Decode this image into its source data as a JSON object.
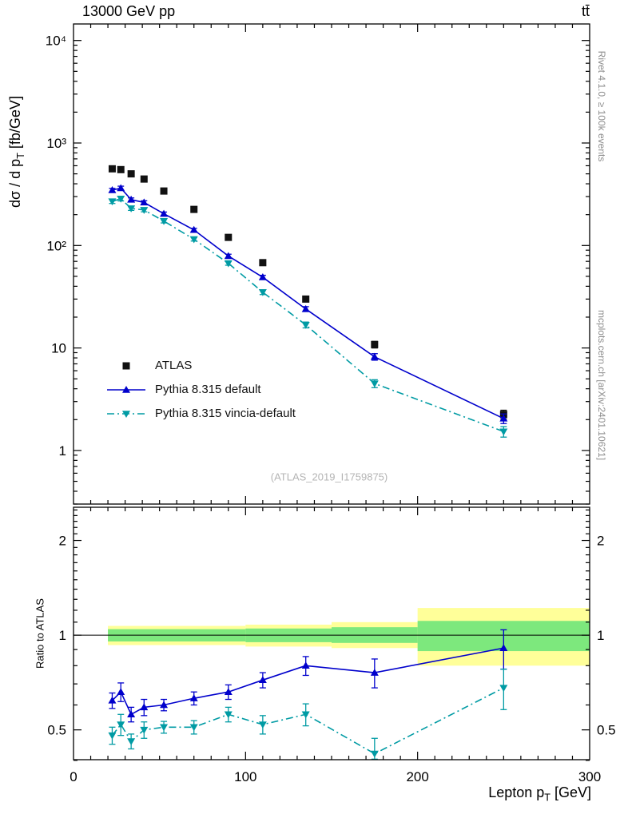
{
  "header": {
    "title_left": "13000 GeV pp",
    "title_right": "tt̄"
  },
  "side_notes": {
    "rivet": "Rivet 4.1.0, ≥ 100k events",
    "mcplots": "mcplots.cern.ch [arXiv:2401.10621]"
  },
  "watermark": "(ATLAS_2019_I1759875)",
  "labels": {
    "ylabel_top": {
      "pre": "dσ / d p",
      "sub": "T",
      "post": " [fb/GeV]"
    },
    "ylabel_ratio": "Ratio to ATLAS",
    "xlabel": {
      "pre": "Lepton p",
      "sub": "T",
      "post": " [GeV]"
    }
  },
  "legend": [
    {
      "label": "ATLAS",
      "marker": "square",
      "color": "#111111",
      "line": null
    },
    {
      "label": "Pythia 8.315 default",
      "marker": "triangle-up",
      "color": "#0000cc",
      "line": "solid"
    },
    {
      "label": "Pythia 8.315 vincia-default",
      "marker": "triangle-down",
      "color": "#009ba4",
      "line": "dashdot"
    }
  ],
  "chart_data": {
    "type": "line",
    "title": "13000 GeV pp",
    "process": "tt̄",
    "xlabel": "Lepton p_T [GeV]",
    "ylabel": "dσ / d p_T [fb/GeV]",
    "ratio_ylabel": "Ratio to ATLAS",
    "x_range": [
      0,
      300
    ],
    "top_y_range": [
      0.3,
      14500
    ],
    "ratio_y_range": [
      0.402,
      2.55
    ],
    "x_major_ticks": [
      0,
      100,
      200,
      300
    ],
    "x_major_tick_labels": [
      "0",
      "100",
      "200",
      "300"
    ],
    "x_minor_step": 10,
    "top_y_major_ticks": [
      1,
      10,
      100,
      1000,
      10000
    ],
    "top_y_major_tick_labels": [
      "1",
      "10",
      "10²",
      "10³",
      "10⁴"
    ],
    "ratio_y_major_ticks": [
      0.5,
      1,
      2
    ],
    "ratio_y_major_tick_labels": [
      "0.5",
      "1",
      "2"
    ],
    "ratio_y_minor_ticks": [
      0.4,
      0.6,
      0.7,
      0.8,
      0.9,
      1.1,
      1.2,
      1.3,
      1.4,
      1.5,
      1.6,
      1.7,
      1.8,
      1.9,
      2.1,
      2.2,
      2.3,
      2.4,
      2.5
    ],
    "x": [
      22.5,
      27.5,
      33.5,
      41,
      52.5,
      70,
      90,
      110,
      135,
      175,
      250
    ],
    "series": [
      {
        "name": "ATLAS",
        "marker": "square",
        "color": "#111111",
        "line": null,
        "values": [
          560,
          550,
          500,
          445,
          340,
          225,
          120,
          68,
          30,
          10.8,
          2.25
        ],
        "errors": [
          28,
          26,
          24,
          21,
          16,
          11,
          6,
          3.5,
          1.7,
          0.8,
          0.22
        ]
      },
      {
        "name": "Pythia 8.315 default",
        "marker": "triangle-up",
        "color": "#0000cc",
        "line": "solid",
        "values": [
          347,
          363,
          280,
          263,
          204,
          142,
          79,
          49,
          24,
          8.2,
          2.05
        ],
        "errors": [
          14,
          16,
          11,
          10,
          8,
          5,
          3.2,
          2.2,
          1.3,
          0.6,
          0.22
        ],
        "ratio": [
          0.62,
          0.66,
          0.56,
          0.59,
          0.6,
          0.63,
          0.66,
          0.72,
          0.8,
          0.76,
          0.91
        ],
        "ratio_err": [
          0.035,
          0.045,
          0.03,
          0.035,
          0.025,
          0.03,
          0.035,
          0.04,
          0.055,
          0.08,
          0.13
        ]
      },
      {
        "name": "Pythia 8.315 vincia-default",
        "marker": "triangle-down",
        "color": "#009ba4",
        "line": "dashdot",
        "values": [
          269,
          286,
          230,
          222,
          173,
          115,
          67,
          35,
          16.8,
          4.5,
          1.53
        ],
        "errors": [
          12,
          14,
          10,
          9,
          7,
          4.5,
          2.8,
          1.8,
          1.1,
          0.4,
          0.18
        ],
        "ratio": [
          0.48,
          0.52,
          0.46,
          0.5,
          0.51,
          0.51,
          0.56,
          0.52,
          0.56,
          0.42,
          0.68
        ],
        "ratio_err": [
          0.03,
          0.04,
          0.025,
          0.03,
          0.022,
          0.025,
          0.03,
          0.035,
          0.045,
          0.05,
          0.1
        ]
      }
    ],
    "ratio_bands": [
      {
        "x": [
          20,
          100
        ],
        "yellow": [
          0.93,
          1.07
        ],
        "green": [
          0.955,
          1.045
        ]
      },
      {
        "x": [
          100,
          150
        ],
        "yellow": [
          0.92,
          1.08
        ],
        "green": [
          0.95,
          1.05
        ]
      },
      {
        "x": [
          150,
          200
        ],
        "yellow": [
          0.91,
          1.1
        ],
        "green": [
          0.945,
          1.06
        ]
      },
      {
        "x": [
          200,
          300
        ],
        "yellow": [
          0.8,
          1.22
        ],
        "green": [
          0.89,
          1.11
        ]
      }
    ],
    "colors": {
      "band_yellow": "#ffff99",
      "band_green": "#7de87d",
      "reference_line": "#000000"
    }
  }
}
